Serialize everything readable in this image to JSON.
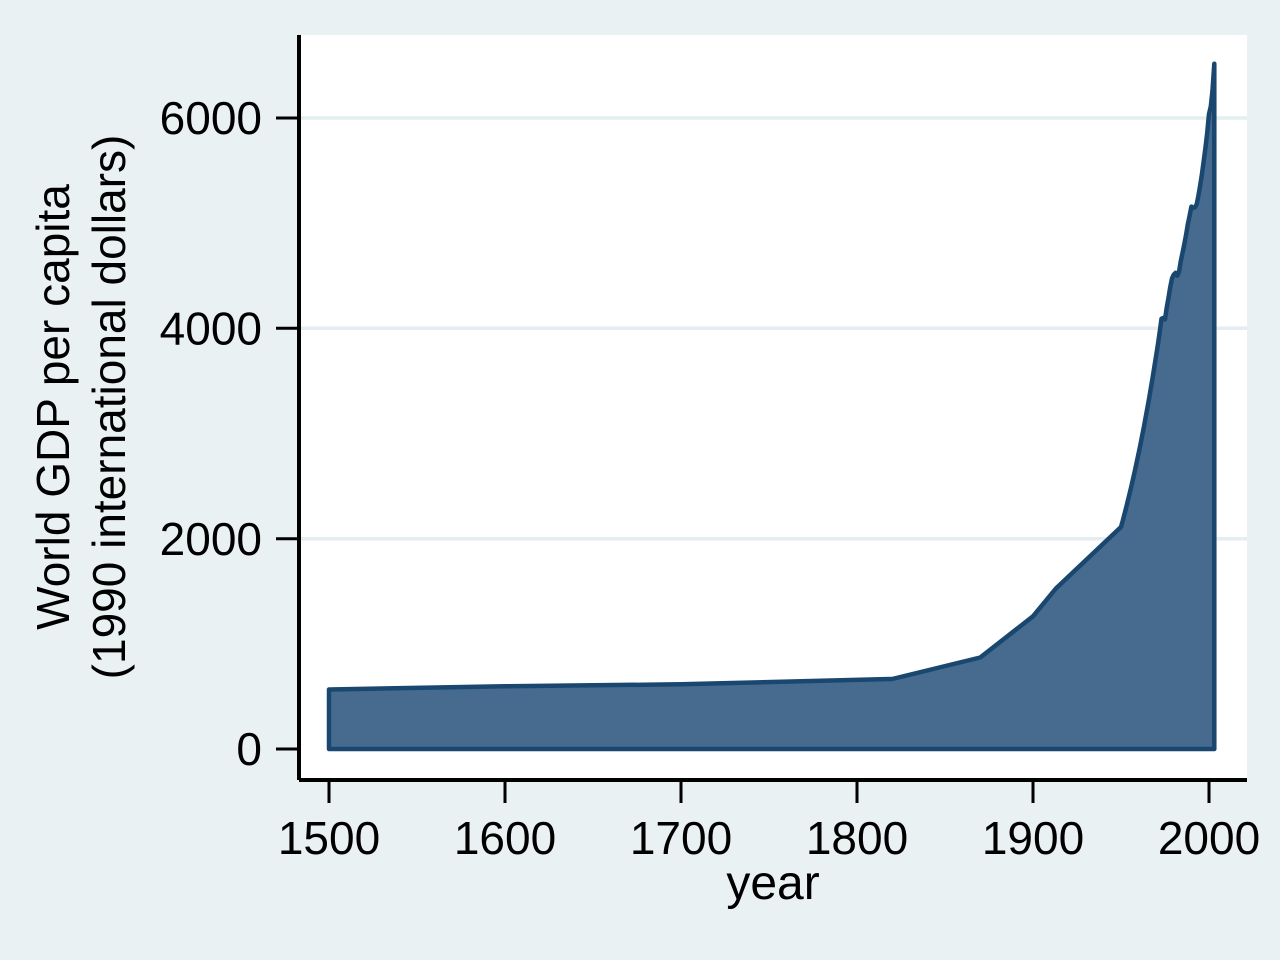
{
  "chart_data": {
    "type": "area",
    "title": "",
    "xlabel": "year",
    "ylabel_line1": "World GDP per capita",
    "ylabel_line2": "(1990 international dollars)",
    "x_ticks": [
      1500,
      1600,
      1700,
      1800,
      1900,
      2000
    ],
    "y_ticks": [
      0,
      2000,
      4000,
      6000
    ],
    "xlim": [
      1483,
      2022
    ],
    "ylim": [
      -295,
      6790
    ],
    "baseline": 0,
    "grid": "horizontal",
    "legend": "none",
    "colors": {
      "fill": "#476B8E",
      "outline": "#1A476F",
      "grid": "#E4EEF0",
      "background": "#EAF1F3",
      "plot_background": "#FFFFFF",
      "axis": "#000000",
      "text": "#000000"
    },
    "series": [
      {
        "name": "World GDP per capita (1990 international dollars)",
        "points": [
          [
            1500,
            566
          ],
          [
            1600,
            596
          ],
          [
            1700,
            615
          ],
          [
            1820,
            666
          ],
          [
            1870,
            870
          ],
          [
            1900,
            1262
          ],
          [
            1913,
            1526
          ],
          [
            1950,
            2111
          ],
          [
            1951,
            2172
          ],
          [
            1952,
            2235
          ],
          [
            1953,
            2300
          ],
          [
            1954,
            2367
          ],
          [
            1955,
            2436
          ],
          [
            1956,
            2507
          ],
          [
            1957,
            2580
          ],
          [
            1958,
            2655
          ],
          [
            1959,
            2732
          ],
          [
            1960,
            2811
          ],
          [
            1961,
            2893
          ],
          [
            1962,
            2977
          ],
          [
            1963,
            3063
          ],
          [
            1964,
            3152
          ],
          [
            1965,
            3244
          ],
          [
            1966,
            3338
          ],
          [
            1967,
            3435
          ],
          [
            1968,
            3535
          ],
          [
            1969,
            3637
          ],
          [
            1970,
            3743
          ],
          [
            1971,
            3852
          ],
          [
            1972,
            3964
          ],
          [
            1973,
            4091
          ],
          [
            1974,
            4098
          ],
          [
            1975,
            4085
          ],
          [
            1976,
            4201
          ],
          [
            1977,
            4290
          ],
          [
            1978,
            4395
          ],
          [
            1979,
            4475
          ],
          [
            1980,
            4511
          ],
          [
            1981,
            4528
          ],
          [
            1982,
            4500
          ],
          [
            1983,
            4540
          ],
          [
            1984,
            4640
          ],
          [
            1985,
            4722
          ],
          [
            1986,
            4805
          ],
          [
            1987,
            4890
          ],
          [
            1988,
            4994
          ],
          [
            1989,
            5070
          ],
          [
            1990,
            5157
          ],
          [
            1991,
            5145
          ],
          [
            1992,
            5150
          ],
          [
            1993,
            5180
          ],
          [
            1994,
            5260
          ],
          [
            1995,
            5360
          ],
          [
            1996,
            5470
          ],
          [
            1997,
            5590
          ],
          [
            1998,
            5720
          ],
          [
            1999,
            5860
          ],
          [
            2000,
            6038
          ],
          [
            2001,
            6110
          ],
          [
            2002,
            6262
          ],
          [
            2003,
            6516
          ]
        ]
      }
    ]
  }
}
